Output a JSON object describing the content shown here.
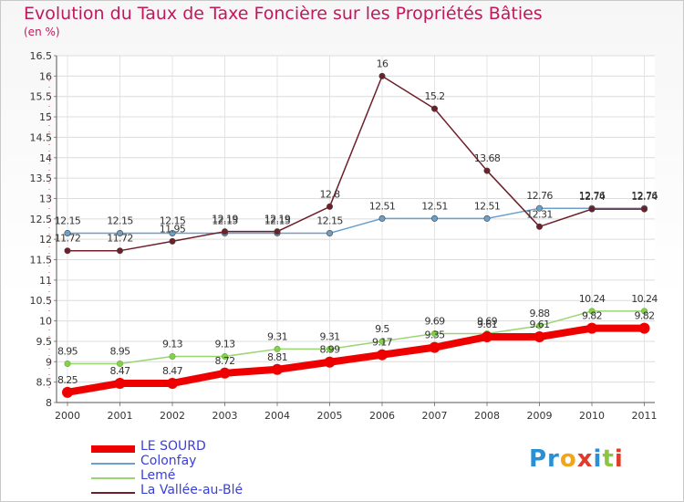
{
  "chart_data": {
    "type": "line",
    "title": "Evolution du Taux de Taxe Foncière sur les Propriétés Bâties",
    "ylabel": "(en %)",
    "categories": [
      "2000",
      "2001",
      "2002",
      "2003",
      "2004",
      "2005",
      "2006",
      "2007",
      "2008",
      "2009",
      "2010",
      "2011"
    ],
    "yticks": [
      "8",
      "8.5",
      "9",
      "9.5",
      "10",
      "10.5",
      "11",
      "11.5",
      "12",
      "12.5",
      "13",
      "13.5",
      "14",
      "14.5",
      "15",
      "15.5",
      "16",
      "16.5"
    ],
    "ylim": [
      8,
      16.5
    ],
    "series": [
      {
        "name": "LE SOURD",
        "color": "#ee0000",
        "values": [
          8.25,
          8.47,
          8.47,
          8.72,
          8.81,
          8.99,
          9.17,
          9.35,
          9.61,
          9.61,
          9.82,
          9.82
        ],
        "labels": [
          "8.25",
          "8.47",
          "8.47",
          "8.72",
          "8.81",
          "8.99",
          "9.17",
          "9.35",
          "9.61",
          "9.61",
          "9.82",
          "9.82"
        ]
      },
      {
        "name": "Colonfay",
        "color": "#6aa0cc",
        "values": [
          12.15,
          12.15,
          12.15,
          12.15,
          12.15,
          12.15,
          12.51,
          12.51,
          12.51,
          12.76,
          12.76,
          12.76
        ],
        "labels": [
          "12.15",
          "12.15",
          "12.15",
          "12.15",
          "12.15",
          "12.15",
          "12.51",
          "12.51",
          "12.51",
          "12.76",
          "12.76",
          "12.76"
        ]
      },
      {
        "name": "Lemé",
        "color": "#99d671",
        "values": [
          8.95,
          8.95,
          9.13,
          9.13,
          9.31,
          9.31,
          9.5,
          9.69,
          9.69,
          9.88,
          10.24,
          10.24
        ],
        "labels": [
          "8.95",
          "8.95",
          "9.13",
          "9.13",
          "9.31",
          "9.31",
          "9.5",
          "9.69",
          "9.69",
          "9.88",
          "10.24",
          "10.24"
        ]
      },
      {
        "name": "La Vallée-au-Blé",
        "color": "#6e1f2a",
        "values": [
          11.72,
          11.72,
          11.95,
          12.19,
          12.19,
          12.8,
          16.0,
          15.2,
          13.68,
          12.31,
          12.74,
          12.74
        ],
        "labels": [
          "11.72",
          "11.72",
          "11.95",
          "12.19",
          "12.19",
          "12.8",
          "16",
          "15.2",
          "13.68",
          "12.31",
          "12.74",
          "12.74"
        ]
      }
    ]
  },
  "logo": {
    "text": "Proxiti"
  }
}
